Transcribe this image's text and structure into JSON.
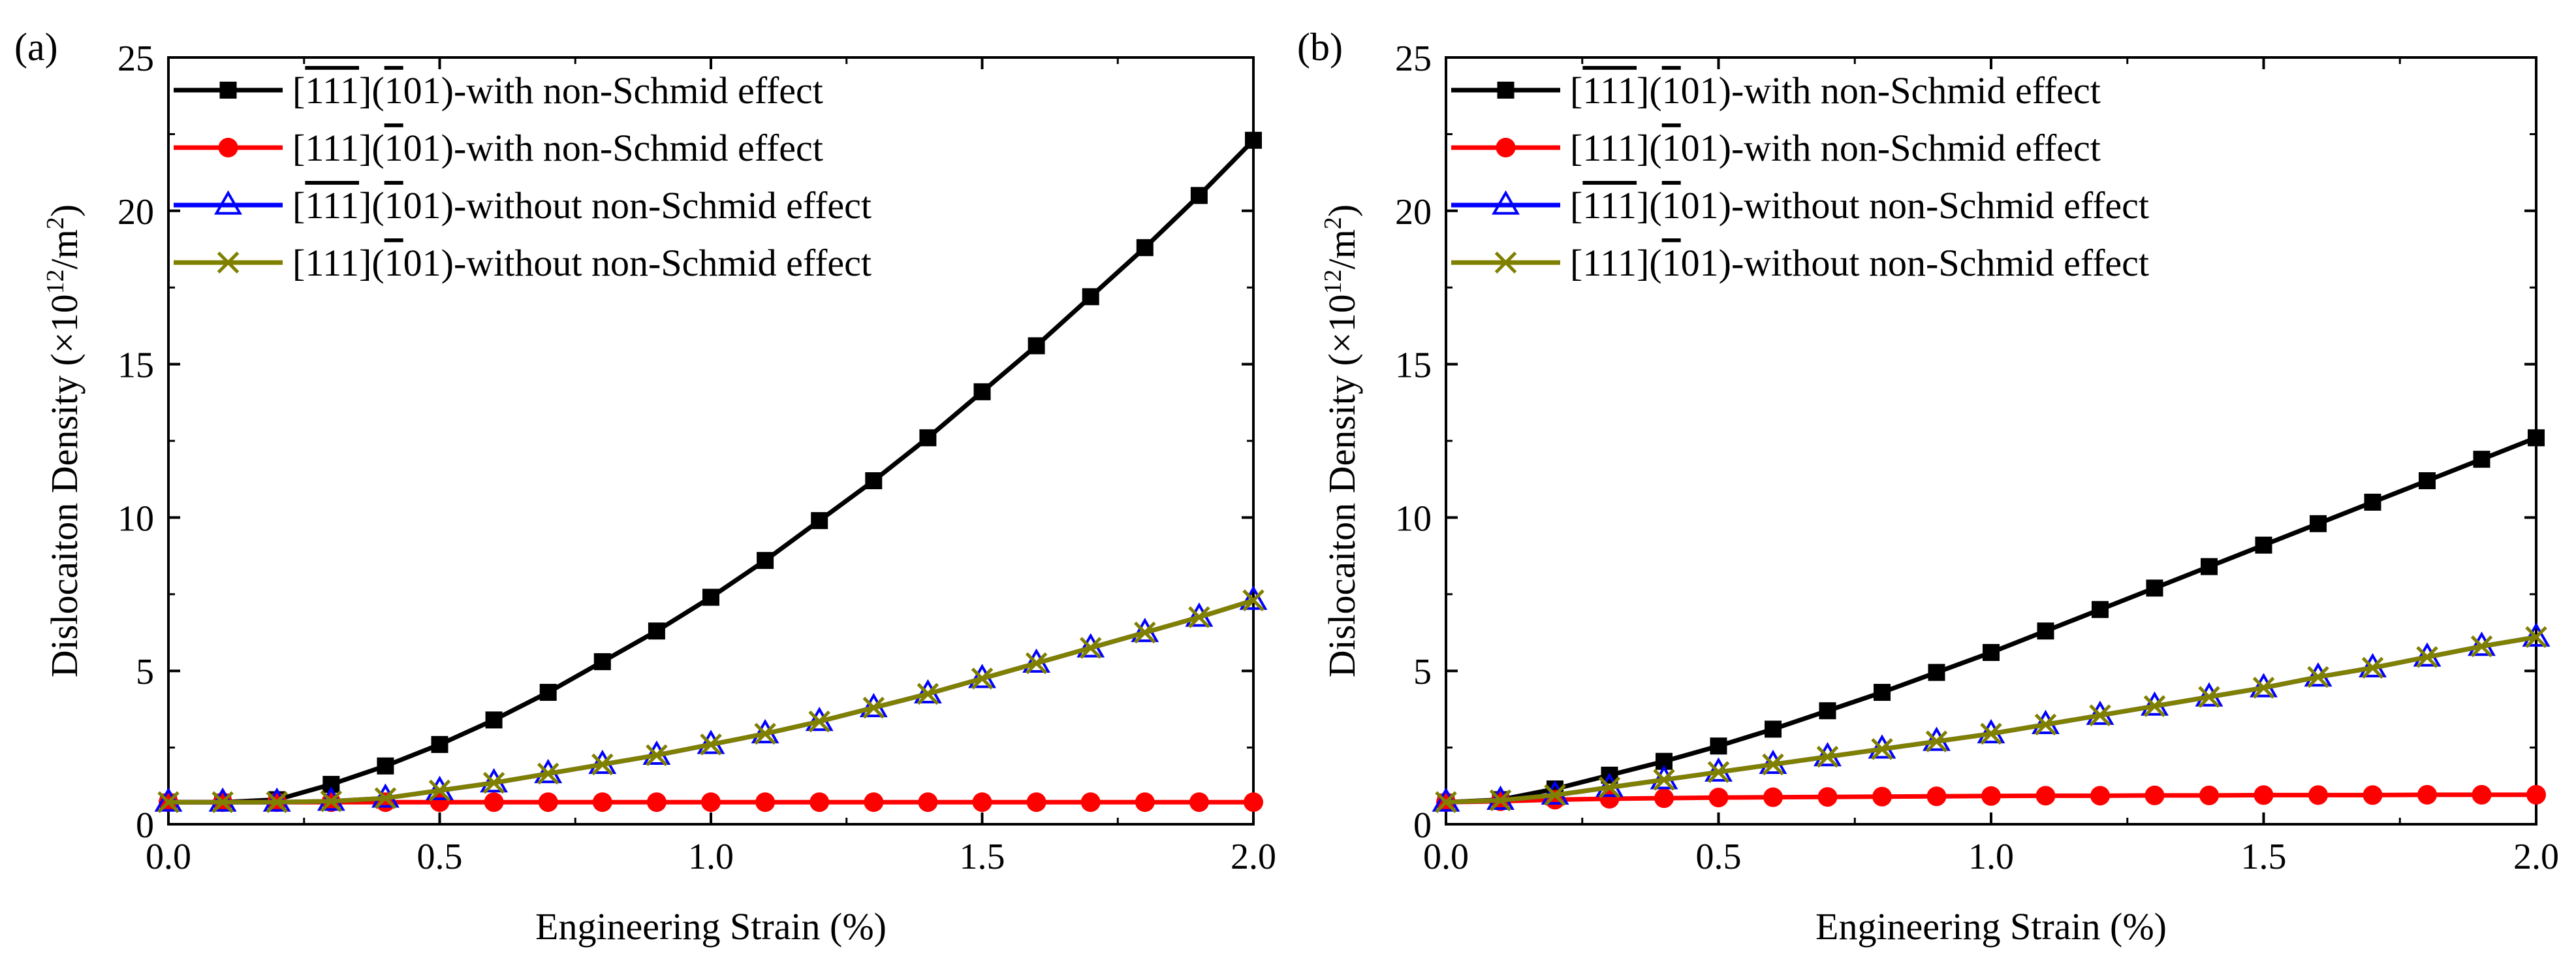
{
  "chart_data": [
    {
      "type": "line",
      "panel_label": "(a)",
      "xlabel": "Engineering Strain (%)",
      "ylabel": {
        "main": "Dislocaiton Density (×10",
        "exp1": "12",
        "mid": "/m",
        "exp2": "2",
        "end": ")"
      },
      "xlim": [
        0,
        2.0
      ],
      "ylim": [
        0,
        25
      ],
      "xticks": [
        "0.0",
        "0.5",
        "1.0",
        "1.5",
        "2.0"
      ],
      "yticks": [
        "0",
        "5",
        "10",
        "15",
        "20",
        "25"
      ],
      "legend_position": "top-left",
      "x": [
        0.0,
        0.1,
        0.2,
        0.3,
        0.4,
        0.5,
        0.6,
        0.7,
        0.8,
        0.9,
        1.0,
        1.1,
        1.2,
        1.3,
        1.4,
        1.5,
        1.6,
        1.7,
        1.8,
        1.9,
        2.0
      ],
      "series": [
        {
          "name": "[1̅1̅1̅](1̅01)-with non-Schmid effect",
          "dir": "111",
          "overline_dir": true,
          "rest": "-with non-Schmid effect",
          "color": "#000000",
          "marker": "square",
          "values": [
            0.72,
            0.72,
            0.8,
            1.3,
            1.9,
            2.6,
            3.4,
            4.3,
            5.3,
            6.3,
            7.4,
            8.6,
            9.9,
            11.2,
            12.6,
            14.1,
            15.6,
            17.2,
            18.8,
            20.5,
            22.3
          ]
        },
        {
          "name": "[111](1̅01)-with non-Schmid effect",
          "dir": "111",
          "overline_dir": false,
          "rest": "-with non-Schmid effect",
          "color": "#ff0000",
          "marker": "circle",
          "values": [
            0.72,
            0.72,
            0.72,
            0.72,
            0.72,
            0.72,
            0.72,
            0.72,
            0.72,
            0.72,
            0.72,
            0.72,
            0.72,
            0.72,
            0.72,
            0.72,
            0.72,
            0.72,
            0.72,
            0.72,
            0.72
          ]
        },
        {
          "name": "[1̅1̅1̅](1̅01)-without non-Schmid effect",
          "dir": "111",
          "overline_dir": true,
          "rest": "-without non-Schmid effect",
          "color": "#0000ff",
          "marker": "triangle",
          "values": [
            0.72,
            0.72,
            0.72,
            0.75,
            0.85,
            1.1,
            1.35,
            1.65,
            1.95,
            2.25,
            2.6,
            2.95,
            3.35,
            3.8,
            4.25,
            4.75,
            5.25,
            5.75,
            6.25,
            6.75,
            7.3
          ]
        },
        {
          "name": "[111](1̅01)-without non-Schmid effect",
          "dir": "111",
          "overline_dir": false,
          "rest": "-without non-Schmid effect",
          "color": "#808000",
          "marker": "x",
          "values": [
            0.72,
            0.72,
            0.72,
            0.75,
            0.85,
            1.1,
            1.35,
            1.65,
            1.95,
            2.25,
            2.6,
            2.95,
            3.35,
            3.8,
            4.25,
            4.75,
            5.25,
            5.75,
            6.25,
            6.75,
            7.3
          ]
        }
      ]
    },
    {
      "type": "line",
      "panel_label": "(b)",
      "xlabel": "Engineering Strain (%)",
      "ylabel": {
        "main": "Dislocaiton Density (×10",
        "exp1": "12",
        "mid": "/m",
        "exp2": "2",
        "end": ")"
      },
      "xlim": [
        0,
        2.0
      ],
      "ylim": [
        0,
        25
      ],
      "xticks": [
        "0.0",
        "0.5",
        "1.0",
        "1.5",
        "2.0"
      ],
      "yticks": [
        "0",
        "5",
        "10",
        "15",
        "20",
        "25"
      ],
      "legend_position": "top-left",
      "x": [
        0.0,
        0.1,
        0.2,
        0.3,
        0.4,
        0.5,
        0.6,
        0.7,
        0.8,
        0.9,
        1.0,
        1.1,
        1.2,
        1.3,
        1.4,
        1.5,
        1.6,
        1.7,
        1.8,
        1.9,
        2.0
      ],
      "series": [
        {
          "name": "[1̅1̅1̅](1̅01)-with non-Schmid effect",
          "dir": "111",
          "overline_dir": true,
          "rest": "-with non-Schmid effect",
          "color": "#000000",
          "marker": "square",
          "values": [
            0.72,
            0.8,
            1.15,
            1.6,
            2.05,
            2.55,
            3.1,
            3.7,
            4.3,
            4.95,
            5.6,
            6.3,
            7.0,
            7.7,
            8.4,
            9.1,
            9.8,
            10.5,
            11.2,
            11.9,
            12.6
          ]
        },
        {
          "name": "[111](1̅01)-with non-Schmid effect",
          "dir": "111",
          "overline_dir": false,
          "rest": "-with non-Schmid effect",
          "color": "#ff0000",
          "marker": "circle",
          "values": [
            0.72,
            0.75,
            0.8,
            0.83,
            0.85,
            0.87,
            0.88,
            0.89,
            0.9,
            0.91,
            0.92,
            0.93,
            0.93,
            0.94,
            0.94,
            0.95,
            0.95,
            0.95,
            0.96,
            0.96,
            0.96
          ]
        },
        {
          "name": "[1̅1̅1̅](1̅01)-without non-Schmid effect",
          "dir": "111",
          "overline_dir": true,
          "rest": "-without non-Schmid effect",
          "color": "#0000ff",
          "marker": "triangle",
          "values": [
            0.72,
            0.78,
            0.95,
            1.2,
            1.45,
            1.7,
            1.95,
            2.2,
            2.45,
            2.7,
            2.95,
            3.25,
            3.55,
            3.85,
            4.15,
            4.45,
            4.8,
            5.1,
            5.45,
            5.8,
            6.1
          ]
        },
        {
          "name": "[111](1̅01)-without non-Schmid effect",
          "dir": "111",
          "overline_dir": false,
          "rest": "-without non-Schmid effect",
          "color": "#808000",
          "marker": "x",
          "values": [
            0.72,
            0.78,
            0.95,
            1.2,
            1.45,
            1.7,
            1.95,
            2.2,
            2.45,
            2.7,
            2.95,
            3.25,
            3.55,
            3.85,
            4.15,
            4.45,
            4.8,
            5.1,
            5.45,
            5.8,
            6.1
          ]
        }
      ]
    }
  ]
}
